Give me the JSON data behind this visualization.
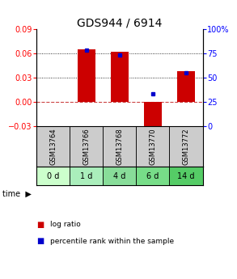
{
  "title": "GDS944 / 6914",
  "samples": [
    "GSM13764",
    "GSM13766",
    "GSM13768",
    "GSM13770",
    "GSM13772"
  ],
  "time_labels": [
    "0 d",
    "1 d",
    "4 d",
    "6 d",
    "14 d"
  ],
  "log_ratios": [
    0.0,
    0.065,
    0.062,
    -0.038,
    0.038
  ],
  "percentile_ranks": [
    null,
    78.0,
    73.0,
    33.0,
    55.0
  ],
  "ylim_left": [
    -0.03,
    0.09
  ],
  "ylim_right": [
    0,
    100
  ],
  "yticks_left": [
    -0.03,
    0,
    0.03,
    0.06,
    0.09
  ],
  "yticks_right": [
    0,
    25,
    50,
    75,
    100
  ],
  "ytick_labels_right": [
    "0",
    "25",
    "50",
    "75",
    "100%"
  ],
  "hlines": [
    0.03,
    0.06
  ],
  "bar_color": "#cc0000",
  "dot_color": "#0000cc",
  "bar_width": 0.55,
  "bg_color_samples": "#cccccc",
  "zero_line_color": "#cc4444",
  "grid_color": "#000000",
  "title_fontsize": 10,
  "tick_fontsize": 7,
  "legend_fontsize": 6.5,
  "sample_fontsize": 6,
  "time_colors": [
    "#ccffcc",
    "#aaeebb",
    "#88dd99",
    "#77dd88",
    "#55cc66"
  ]
}
